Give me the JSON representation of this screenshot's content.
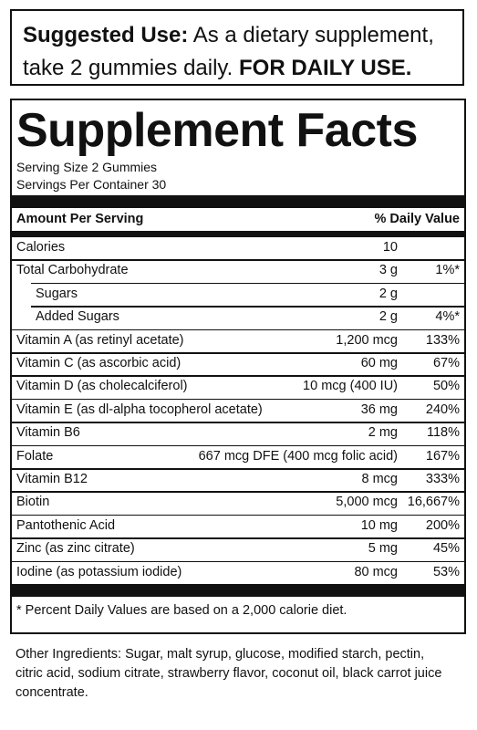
{
  "suggested_use": {
    "label": "Suggested Use:",
    "text": " As a dietary supplement, take 2 gummies daily. ",
    "emphasis": "FOR DAILY USE."
  },
  "facts": {
    "title": "Supplement Facts",
    "serving_size": "Serving Size 2 Gummies",
    "servings_per_container": "Servings Per Container 30",
    "header_amount": "Amount Per Serving",
    "header_dv": "% Daily Value",
    "rows": [
      {
        "name": "Calories",
        "amount": "10",
        "dv": ""
      },
      {
        "name": "Total Carbohydrate",
        "amount": "3 g",
        "dv": "1%*"
      },
      {
        "name": "Sugars",
        "amount": "2 g",
        "dv": ""
      },
      {
        "name": "Added Sugars",
        "amount": "2 g",
        "dv": "4%*"
      },
      {
        "name": "Vitamin A (as retinyl acetate)",
        "amount": "1,200 mcg",
        "dv": "133%"
      },
      {
        "name": "Vitamin C (as ascorbic acid)",
        "amount": "60 mg",
        "dv": "67%"
      },
      {
        "name": "Vitamin D (as cholecalciferol)",
        "amount": "10 mcg (400 IU)",
        "dv": "50%"
      },
      {
        "name": "Vitamin E (as dl-alpha tocopherol acetate)",
        "amount": "36 mg",
        "dv": "240%"
      },
      {
        "name": "Vitamin B6",
        "amount": "2 mg",
        "dv": "118%"
      },
      {
        "name": "Folate",
        "amount": "667 mcg DFE (400 mcg folic acid)",
        "dv": "167%"
      },
      {
        "name": "Vitamin B12",
        "amount": "8 mcg",
        "dv": "333%"
      },
      {
        "name": "Biotin",
        "amount": "5,000 mcg",
        "dv": "16,667%"
      },
      {
        "name": "Pantothenic Acid",
        "amount": "10 mg",
        "dv": "200%"
      },
      {
        "name": "Zinc (as zinc citrate)",
        "amount": "5 mg",
        "dv": "45%"
      },
      {
        "name": "Iodine (as potassium iodide)",
        "amount": "80 mcg",
        "dv": "53%"
      }
    ],
    "footnote": "* Percent Daily Values are based on a 2,000 calorie diet."
  },
  "other_ingredients": "Other Ingredients: Sugar, malt syrup, glucose, modified starch, pectin, citric acid, sodium citrate, strawberry flavor, coconut oil, black carrot juice concentrate."
}
